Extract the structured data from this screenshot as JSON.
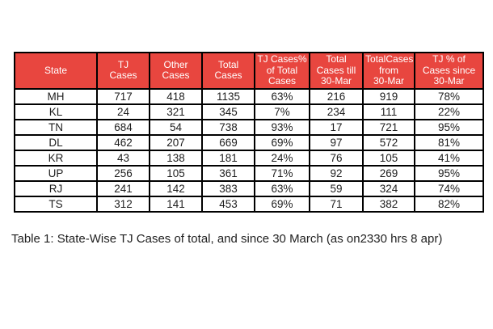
{
  "chart_data": {
    "type": "table",
    "caption": "Table 1: State-Wise TJ Cases of total, and since 30 March (as on2330 hrs 8 apr)",
    "columns": [
      "State",
      "TJ Cases",
      "Other Cases",
      "Total Cases",
      "TJ Cases% of Total Cases",
      "Total Cases till 30-Mar",
      "TotalCases from 30-Mar",
      "TJ % of Cases since 30-Mar"
    ],
    "header_display": [
      "State",
      "TJ\nCases",
      "Other\nCases",
      "Total\nCases",
      "TJ Cases%\nof Total\nCases",
      "Total\nCases till\n30-Mar",
      "TotalCases\nfrom\n30-Mar",
      "TJ % of\nCases since\n30-Mar"
    ],
    "rows": [
      [
        "MH",
        "717",
        "418",
        "1135",
        "63%",
        "216",
        "919",
        "78%"
      ],
      [
        "KL",
        "24",
        "321",
        "345",
        "7%",
        "234",
        "111",
        "22%"
      ],
      [
        "TN",
        "684",
        "54",
        "738",
        "93%",
        "17",
        "721",
        "95%"
      ],
      [
        "DL",
        "462",
        "207",
        "669",
        "69%",
        "97",
        "572",
        "81%"
      ],
      [
        "KR",
        "43",
        "138",
        "181",
        "24%",
        "76",
        "105",
        "41%"
      ],
      [
        "UP",
        "256",
        "105",
        "361",
        "71%",
        "92",
        "269",
        "95%"
      ],
      [
        "RJ",
        "241",
        "142",
        "383",
        "63%",
        "59",
        "324",
        "74%"
      ],
      [
        "TS",
        "312",
        "141",
        "453",
        "69%",
        "71",
        "382",
        "82%"
      ]
    ],
    "layout_hints": {
      "grid": "on",
      "header_position": "top"
    }
  },
  "colors": {
    "header_bg": "#e8463f",
    "header_text": "#ffffff",
    "border": "#000000",
    "body_text": "#1d1d1d",
    "caption_text": "#212121",
    "page_bg": "#ffffff"
  }
}
